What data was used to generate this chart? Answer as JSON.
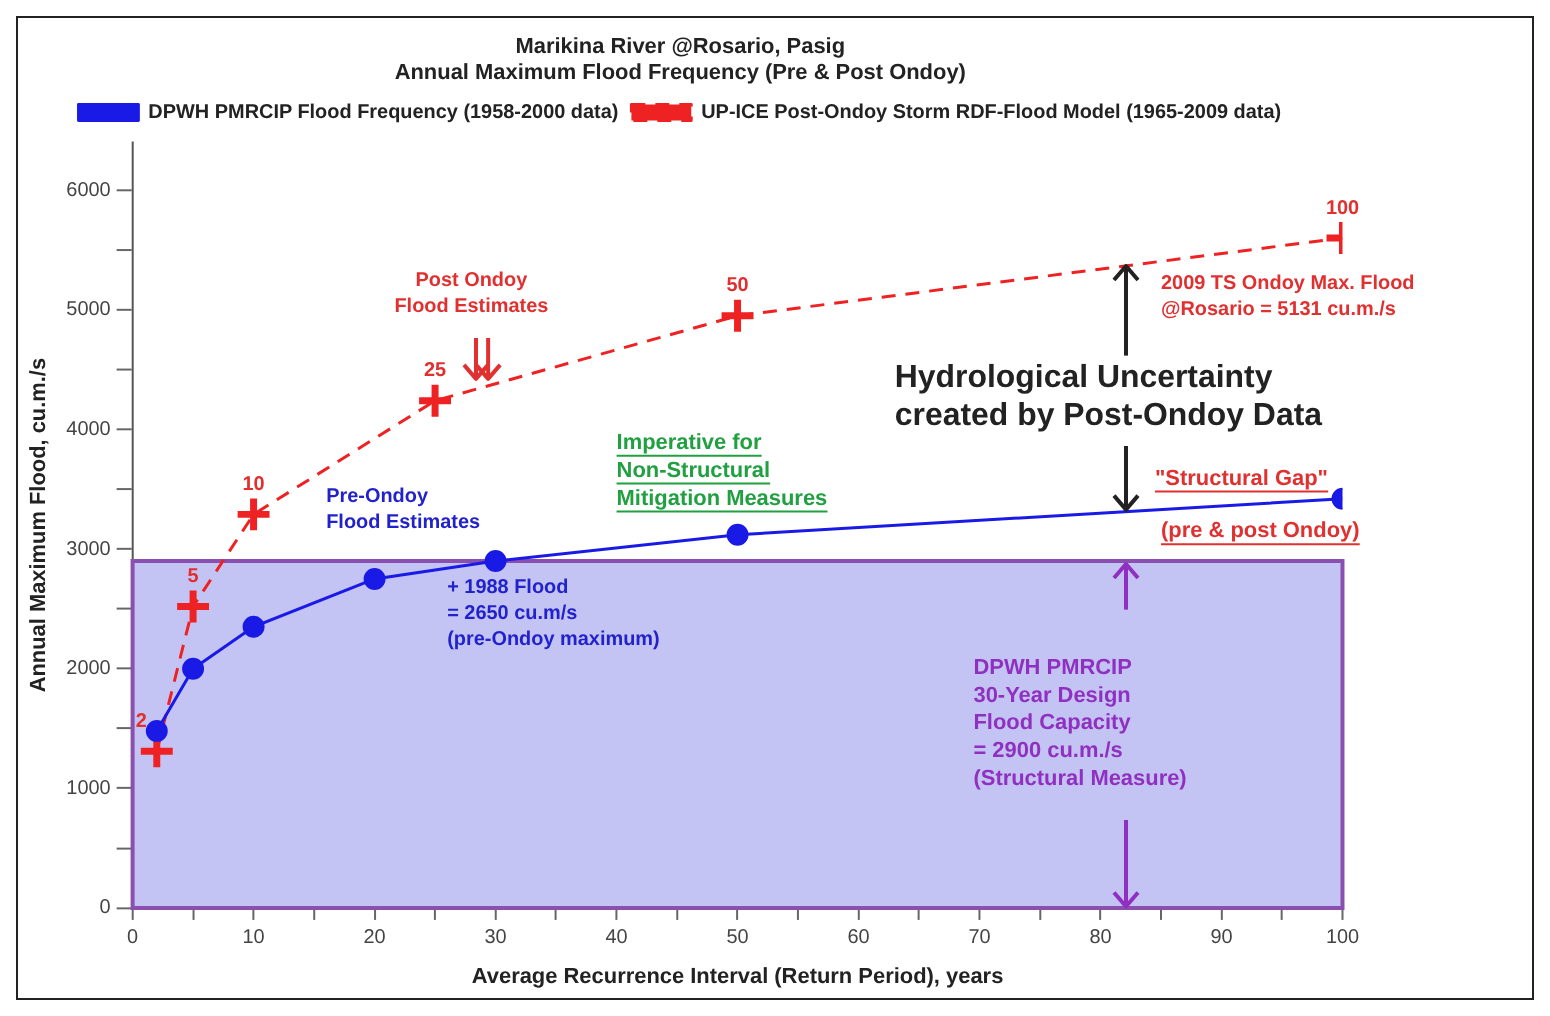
{
  "chart_data": {
    "type": "line",
    "title": "Marikina River @Rosario, Pasig\nAnnual Maximum Flood Frequency (Pre & Post Ondoy)",
    "xlabel": "Average Recurrence Interval (Return Period), years",
    "ylabel": "Annual Maximum Flood, cu.m./s",
    "xlim": [
      0,
      100
    ],
    "xticks": [
      0,
      {
        "value": 5,
        "label": null
      },
      10,
      {
        "value": 15,
        "label": null
      },
      20,
      {
        "value": 25,
        "label": null
      },
      30,
      {
        "value": 35,
        "label": null
      },
      40,
      {
        "value": 45,
        "label": null
      },
      50,
      {
        "value": 55,
        "label": null
      },
      60,
      {
        "value": 65,
        "label": null
      },
      70,
      {
        "value": 75,
        "label": null
      },
      80,
      {
        "value": 85,
        "label": null
      },
      90,
      {
        "value": 95,
        "label": null
      },
      100
    ],
    "ylim": [
      0,
      6400
    ],
    "yticks": [
      0,
      {
        "value": 500,
        "label": null
      },
      1000,
      {
        "value": 1500,
        "label": null
      },
      2000,
      {
        "value": 2500,
        "label": null
      },
      3000,
      {
        "value": 3500,
        "label": null
      },
      4000,
      {
        "value": 4500,
        "label": null
      },
      5000,
      {
        "value": 5500,
        "label": null
      },
      6000
    ],
    "grid": false,
    "legend": "top",
    "series": [
      {
        "name": "DPWH PMRCIP Flood Frequency (1958-2000 data)",
        "color": "#1a1ae6",
        "marker": "circle",
        "line_style": "solid",
        "x": [
          2,
          5,
          10,
          20,
          30,
          50,
          100
        ],
        "values": [
          1480,
          2000,
          2350,
          2750,
          2900,
          3120,
          3420
        ]
      },
      {
        "name": "UP-ICE Post-Ondoy Storm RDF-Flood Model (1965-2009 data)",
        "color": "#ee2222",
        "marker": "cross",
        "line_style": "dashed",
        "x": [
          2,
          5,
          10,
          25,
          50,
          100
        ],
        "values": [
          1310,
          2520,
          3290,
          4240,
          4950,
          5600
        ]
      }
    ],
    "bands": [
      {
        "axis": "y",
        "from": 0,
        "to": 2900,
        "color": "#c4c4f4",
        "label": "DPWH PMRCIP\n30-Year Design\nFlood Capacity\n= 2900 cu.m./s\n(Structural Measure)"
      }
    ],
    "annotations": [
      "Post Ondoy\nFlood Estimates",
      "Pre-Ondoy\nFlood Estimates",
      "+ 1988 Flood\n= 2650 cu.m/s\n(pre-Ondoy maximum)",
      "Imperative for\nNon-Structural\nMitigation Measures",
      "2009 TS Ondoy Max. Flood\n@Rosario = 5131 cu.m./s",
      {
        "text": "Hydrological Uncertainty\ncreated by Post-Ondoy Data",
        "x": 82,
        "y": 5366
      },
      "\"Structural Gap\"",
      "(pre & post Ondoy)",
      {
        "text": "2",
        "x": 2,
        "y": 1310
      },
      {
        "text": "5",
        "x": 5,
        "y": 2520
      },
      {
        "text": "10",
        "x": 10,
        "y": 3290
      },
      {
        "text": "25",
        "x": 25,
        "y": 4240
      },
      {
        "text": "50",
        "x": 50,
        "y": 4950
      },
      {
        "text": "100",
        "x": 100,
        "y": 5600
      }
    ]
  }
}
